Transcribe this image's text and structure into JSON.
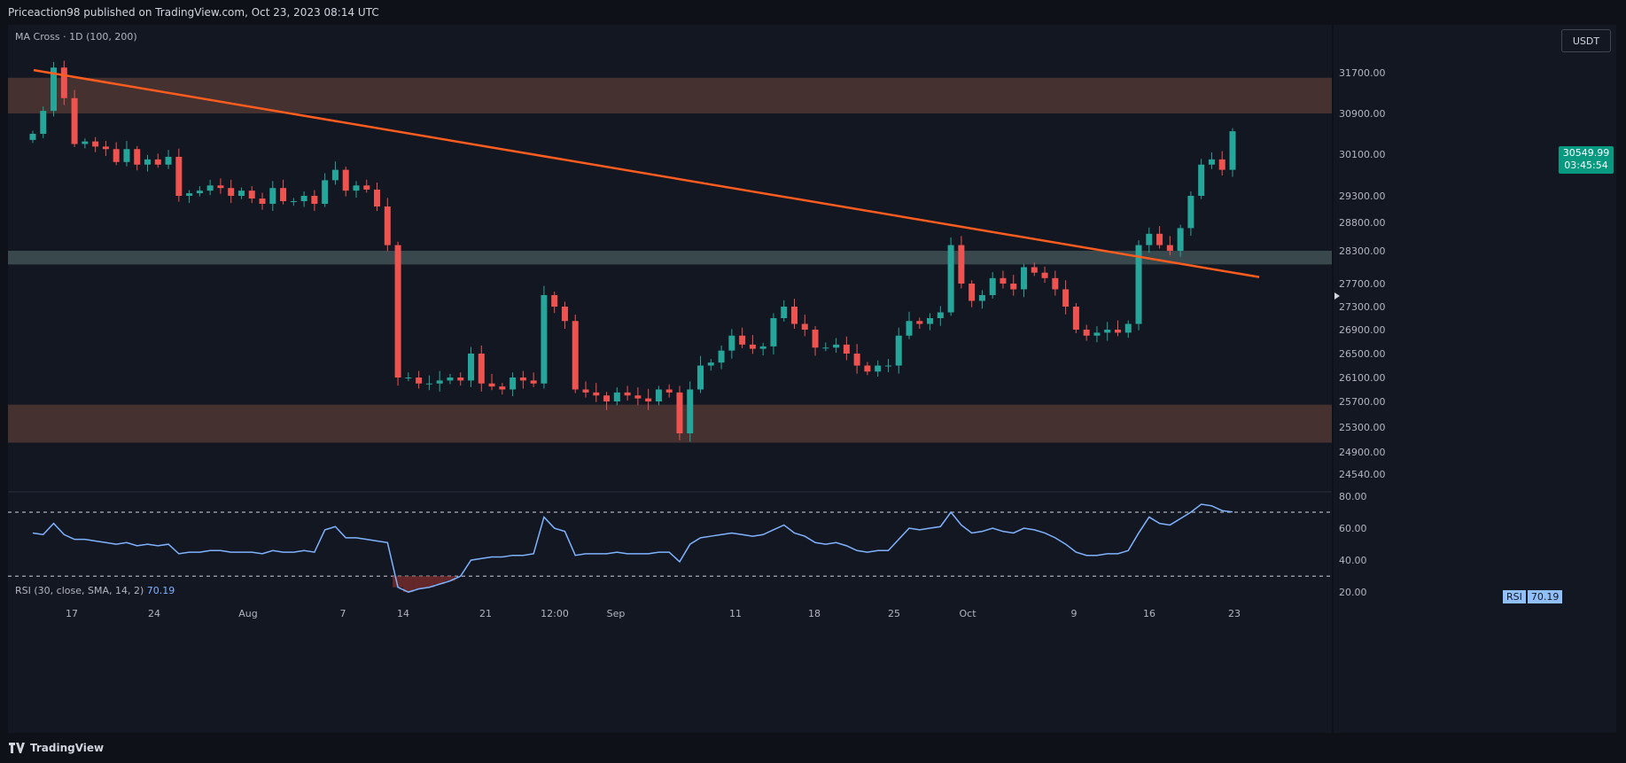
{
  "header": {
    "published": "Priceaction98 published on TradingView.com, Oct 23, 2023 08:14 UTC"
  },
  "indicator_title": "MA Cross · 1D (100, 200)",
  "currency_button": "USDT",
  "last_price": {
    "value": "30549.99",
    "countdown": "03:45:54"
  },
  "rsi": {
    "title": "RSI (30, close, SMA, 14, 2)",
    "value": "70.19",
    "tag_label": "RSI"
  },
  "footer": {
    "brand": "TradingView"
  },
  "colors": {
    "bg": "#131722",
    "up": "#26a69a",
    "down": "#ef5350",
    "trendline": "#ff5d1f",
    "resistance_zone": "#4a3432",
    "support_zone": "#415155",
    "rsi_line": "#7fb3ff"
  },
  "chart_data": [
    {
      "type": "candlestick",
      "y_ticks": [
        "31700.00",
        "30900.00",
        "30100.00",
        "29300.00",
        "28800.00",
        "28300.00",
        "27700.00",
        "27300.00",
        "26900.00",
        "26500.00",
        "26100.00",
        "25700.00",
        "25300.00",
        "24900.00",
        "24540.00"
      ],
      "x_ticks": [
        "17",
        "24",
        "Aug",
        "7",
        "14",
        "21",
        "12:00",
        "Sep",
        "11",
        "18",
        "25",
        "Oct",
        "9",
        "16",
        "23"
      ],
      "zones": [
        {
          "name": "upper",
          "from": 30900,
          "to": 31600
        },
        {
          "name": "middle",
          "from": 28050,
          "to": 28300
        },
        {
          "name": "lower",
          "from": 25050,
          "to": 25650
        }
      ],
      "trendline": {
        "from": {
          "date": "Jul 12",
          "price": 31750
        },
        "to": {
          "date": "Oct 30",
          "price": 27820
        }
      },
      "series": [
        {
          "values": [
            30500,
            30950,
            31800,
            31200,
            30300,
            30350,
            30250,
            30200,
            29950,
            30200,
            29900,
            30000,
            29900,
            30050,
            29300,
            29350,
            29400,
            29500,
            29450,
            29300,
            29400,
            29250,
            29150,
            29450,
            29200,
            29200,
            29300,
            29150,
            29600,
            29800,
            29400,
            29500,
            29420,
            29100,
            28400,
            26100,
            26100,
            26000,
            26000,
            26050,
            26100,
            26050,
            26500,
            26000,
            25950,
            25900,
            26100,
            26050,
            26000,
            27500,
            27300,
            27050,
            25900,
            25850,
            25800,
            25700,
            25850,
            25800,
            25750,
            25700,
            25900,
            25850,
            25200,
            25900,
            26300,
            26350,
            26550,
            26800,
            26650,
            26580,
            26620,
            27100,
            27300,
            27000,
            26900,
            26600,
            26600,
            26650,
            26500,
            26300,
            26200,
            26300,
            26300,
            26800,
            27050,
            27000,
            27100,
            27200,
            28400,
            27700,
            27400,
            27500,
            27800,
            27700,
            27600,
            28000,
            27900,
            27800,
            27600,
            27300,
            26900,
            26800,
            26850,
            26900,
            26850,
            27000,
            28400,
            28600,
            28400,
            28300,
            28700,
            29300,
            29900,
            30000,
            29800,
            30549.99
          ]
        }
      ]
    },
    {
      "type": "line",
      "name": "RSI",
      "y_ticks": [
        "80.00",
        "60.00",
        "40.00",
        "20.00"
      ],
      "levels": [
        70,
        30
      ],
      "values": [
        57,
        56,
        63,
        56,
        53,
        53,
        52,
        51,
        50,
        51,
        49,
        50,
        49,
        50,
        44,
        45,
        45,
        46,
        46,
        45,
        45,
        45,
        44,
        46,
        45,
        45,
        46,
        45,
        59,
        61,
        54,
        54,
        53,
        52,
        51,
        23,
        20,
        22,
        23,
        25,
        27,
        30,
        40,
        41,
        42,
        42,
        43,
        43,
        44,
        67,
        60,
        58,
        43,
        44,
        44,
        44,
        45,
        44,
        44,
        44,
        45,
        45,
        39,
        50,
        54,
        55,
        56,
        57,
        56,
        55,
        56,
        59,
        62,
        57,
        55,
        51,
        50,
        51,
        49,
        46,
        45,
        46,
        46,
        53,
        60,
        59,
        60,
        61,
        70,
        62,
        57,
        58,
        60,
        58,
        57,
        60,
        59,
        57,
        54,
        50,
        45,
        43,
        43,
        44,
        44,
        46,
        57,
        67,
        63,
        62,
        66,
        70,
        75,
        74,
        71,
        70.19
      ]
    }
  ]
}
